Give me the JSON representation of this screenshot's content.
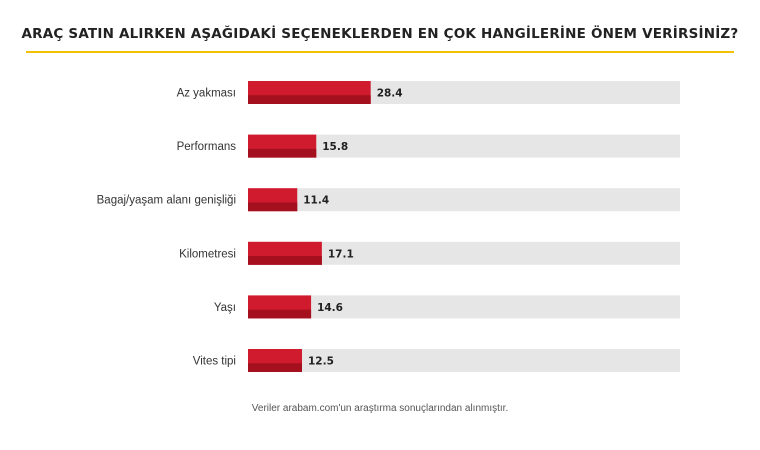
{
  "colors": {
    "bar": "#d01a2e",
    "bar_shadow": "#a5101f",
    "track": "#e6e6e6",
    "rule": "#f2c200",
    "label": "#333333"
  },
  "chart_data": {
    "type": "bar",
    "orientation": "horizontal",
    "title": "ARAÇ SATIN ALIRKEN AŞAĞIDAKİ SEÇENEKLERDEN EN ÇOK HANGİLERİNE ÖNEM VERİRSİNİZ?",
    "categories": [
      "Az yakması",
      "Performans",
      "Bagaj/yaşam alanı genişliği",
      "Kilometresi",
      "Yaşı",
      "Vites tipi"
    ],
    "values": [
      28.4,
      15.8,
      11.4,
      17.1,
      14.6,
      12.5
    ],
    "data_labels": [
      "28.4",
      "15.8",
      "11.4",
      "17.1",
      "14.6",
      "12.5"
    ],
    "xlim": [
      0,
      100
    ],
    "grid": false,
    "legend": "none",
    "footnote": "Veriler arabam.com'un araştırma sonuçlarından alınmıştır."
  }
}
